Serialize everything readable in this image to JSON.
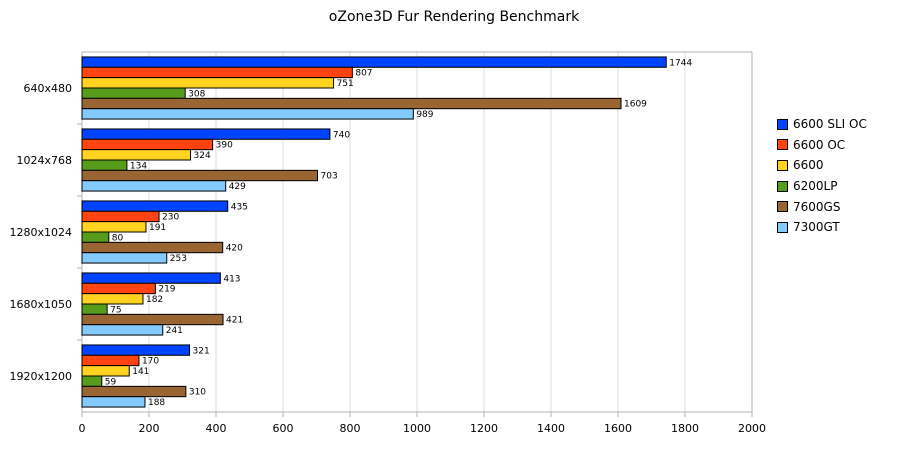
{
  "chart_data": {
    "type": "bar",
    "orientation": "horizontal",
    "title": "oZone3D Fur Rendering Benchmark",
    "xlabel": "",
    "ylabel": "",
    "xlim": [
      0,
      2000
    ],
    "xticks": [
      0,
      200,
      400,
      600,
      800,
      1000,
      1200,
      1400,
      1600,
      1800,
      2000
    ],
    "grid": true,
    "legend_position": "right",
    "categories": [
      "640x480",
      "1024x768",
      "1280x1024",
      "1680x1050",
      "1920x1200"
    ],
    "series": [
      {
        "name": "6600 SLI OC",
        "color": "#0044ff",
        "values": [
          1744,
          740,
          435,
          413,
          321
        ]
      },
      {
        "name": "6600 OC",
        "color": "#ff4411",
        "values": [
          807,
          390,
          230,
          219,
          170
        ]
      },
      {
        "name": "6600",
        "color": "#ffd320",
        "values": [
          751,
          324,
          191,
          182,
          141
        ]
      },
      {
        "name": "6200LP",
        "color": "#579d1c",
        "values": [
          308,
          134,
          80,
          75,
          59
        ]
      },
      {
        "name": "7600GS",
        "color": "#996633",
        "values": [
          1609,
          703,
          420,
          421,
          310
        ]
      },
      {
        "name": "7300GT",
        "color": "#83caff",
        "values": [
          989,
          429,
          253,
          241,
          188
        ]
      }
    ]
  }
}
